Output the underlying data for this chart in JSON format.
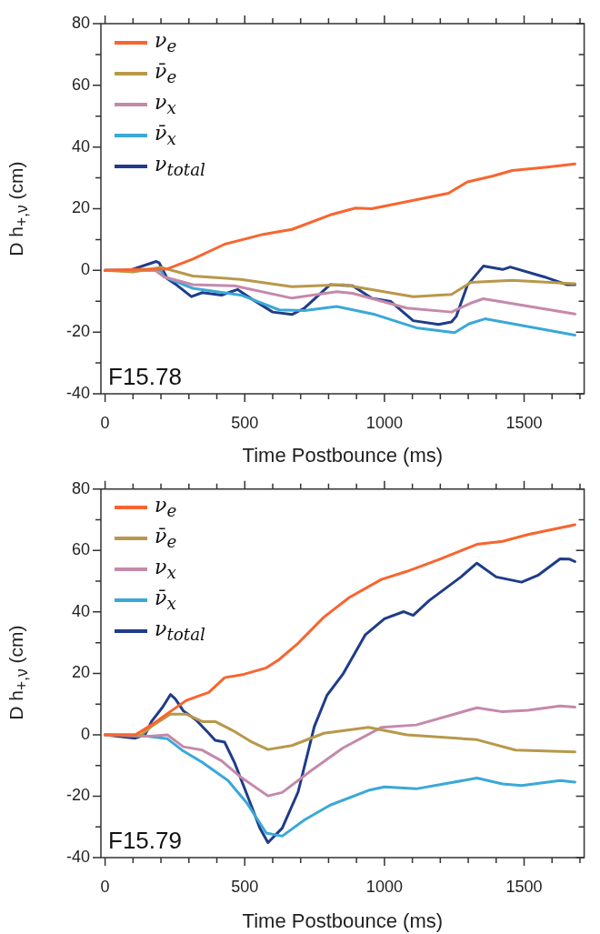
{
  "chart_data": [
    {
      "type": "line",
      "xlabel": "Time Postbounce (ms)",
      "ylabel": "D h$_{+,ν}$ (cm)",
      "annotations": [
        "F15.78"
      ],
      "legend": "top left",
      "grid": false,
      "marker": "none",
      "line_style": "solid",
      "xlim": [
        -15,
        1715
      ],
      "ylim": [
        -40,
        80
      ],
      "xticks": [
        0,
        {
          "value": 100,
          "label": null
        },
        {
          "value": 200,
          "label": null
        },
        {
          "value": 300,
          "label": null
        },
        {
          "value": 400,
          "label": null
        },
        500,
        {
          "value": 600,
          "label": null
        },
        {
          "value": 700,
          "label": null
        },
        {
          "value": 800,
          "label": null
        },
        {
          "value": 900,
          "label": null
        },
        1000,
        {
          "value": 1100,
          "label": null
        },
        {
          "value": 1200,
          "label": null
        },
        {
          "value": 1300,
          "label": null
        },
        {
          "value": 1400,
          "label": null
        },
        1500,
        {
          "value": 1600,
          "label": null
        },
        {
          "value": 1700,
          "label": null
        }
      ],
      "yticks": [
        -40,
        {
          "value": -30,
          "label": null
        },
        -20,
        {
          "value": -10,
          "label": null
        },
        0,
        {
          "value": 10,
          "label": null
        },
        20,
        {
          "value": 30,
          "label": null
        },
        40,
        {
          "value": 50,
          "label": null
        },
        60,
        {
          "value": 70,
          "label": null
        },
        80
      ],
      "series": [
        {
          "name": "ν$_{e}$",
          "color": "#f8652f",
          "x": [
            0,
            108,
            223,
            314,
            428,
            566,
            669,
            806,
            897,
            954,
            1080,
            1229,
            1297,
            1389,
            1457,
            1583,
            1682
          ],
          "values": [
            0,
            0.3,
            0.5,
            3.7,
            8.5,
            11.7,
            13.3,
            18,
            20.2,
            20,
            22.3,
            25,
            28.7,
            30.6,
            32.4,
            33.5,
            34.5
          ]
        },
        {
          "name": "ν̄$_{e}$",
          "color": "#b8984a",
          "x": [
            0,
            100,
            200,
            314,
            486,
            669,
            851,
            1103,
            1240,
            1309,
            1457,
            1682
          ],
          "values": [
            0,
            -0.5,
            1,
            -1.8,
            -2.9,
            -5.3,
            -4.6,
            -8.5,
            -7.8,
            -3.9,
            -3.2,
            -4.3
          ]
        },
        {
          "name": "ν$_{x}$",
          "color": "#c589ab",
          "x": [
            0,
            180,
            211,
            314,
            463,
            669,
            829,
            886,
            1080,
            1240,
            1309,
            1354,
            1682
          ],
          "values": [
            0,
            0,
            -2.1,
            -4.6,
            -5,
            -9,
            -6.9,
            -7.4,
            -12.2,
            -13.5,
            -10.6,
            -9.2,
            -14.1
          ]
        },
        {
          "name": "ν̄$_{x}$",
          "color": "#3aa8d8",
          "x": [
            0,
            200,
            211,
            314,
            486,
            623,
            714,
            829,
            966,
            1114,
            1251,
            1303,
            1360,
            1682
          ],
          "values": [
            0,
            0,
            -2.1,
            -5.8,
            -8,
            -12.8,
            -13,
            -11.7,
            -14.3,
            -18.6,
            -20.2,
            -17.3,
            -15.7,
            -21
          ]
        },
        {
          "name": "ν$_{total}$",
          "color": "#1f3c88",
          "x": [
            0,
            86,
            183,
            194,
            223,
            257,
            309,
            348,
            417,
            474,
            531,
            600,
            669,
            714,
            806,
            886,
            954,
            1023,
            1103,
            1194,
            1240,
            1257,
            1297,
            1354,
            1423,
            1451,
            1572,
            1652,
            1682
          ],
          "values": [
            0,
            0,
            2.9,
            2.4,
            -2.7,
            -4.8,
            -8.5,
            -7.2,
            -8,
            -6.2,
            -9.6,
            -13.5,
            -14.3,
            -12.2,
            -4.6,
            -5,
            -9,
            -10.1,
            -16.3,
            -17.5,
            -16.7,
            -14.9,
            -4.8,
            1.4,
            0.3,
            1.1,
            -2.1,
            -4.6,
            -4.6
          ]
        }
      ]
    },
    {
      "type": "line",
      "xlabel": "Time Postbounce (ms)",
      "ylabel": "D h$_{+,ν}$ (cm)",
      "annotations": [
        "F15.79"
      ],
      "legend": "top left",
      "grid": false,
      "marker": "none",
      "line_style": "solid",
      "xlim": [
        -15,
        1715
      ],
      "ylim": [
        -40,
        80
      ],
      "xticks": [
        0,
        {
          "value": 100,
          "label": null
        },
        {
          "value": 200,
          "label": null
        },
        {
          "value": 300,
          "label": null
        },
        {
          "value": 400,
          "label": null
        },
        500,
        {
          "value": 600,
          "label": null
        },
        {
          "value": 700,
          "label": null
        },
        {
          "value": 800,
          "label": null
        },
        {
          "value": 900,
          "label": null
        },
        1000,
        {
          "value": 1100,
          "label": null
        },
        {
          "value": 1200,
          "label": null
        },
        {
          "value": 1300,
          "label": null
        },
        {
          "value": 1400,
          "label": null
        },
        1500,
        {
          "value": 1600,
          "label": null
        },
        {
          "value": 1700,
          "label": null
        }
      ],
      "yticks": [
        -40,
        {
          "value": -30,
          "label": null
        },
        -20,
        {
          "value": -10,
          "label": null
        },
        0,
        {
          "value": 10,
          "label": null
        },
        20,
        {
          "value": 30,
          "label": null
        },
        40,
        {
          "value": 50,
          "label": null
        },
        60,
        {
          "value": 70,
          "label": null
        },
        80
      ],
      "series": [
        {
          "name": "ν$_{e}$",
          "color": "#f8652f",
          "x": [
            0,
            108,
            166,
            223,
            291,
            371,
            428,
            497,
            577,
            623,
            691,
            783,
            874,
            989,
            1080,
            1194,
            1331,
            1423,
            1514,
            1682
          ],
          "values": [
            0,
            0,
            3.2,
            6.9,
            11.2,
            13.8,
            18.6,
            19.7,
            21.8,
            24.5,
            29.8,
            38.3,
            44.7,
            50.6,
            53.2,
            57,
            62,
            63,
            65.2,
            68.4
          ]
        },
        {
          "name": "ν̄$_{e}$",
          "color": "#b8984a",
          "x": [
            0,
            130,
            166,
            234,
            291,
            348,
            394,
            463,
            520,
            583,
            669,
            783,
            943,
            1080,
            1331,
            1469,
            1682
          ],
          "values": [
            0,
            0,
            2.7,
            6.7,
            6.7,
            4.3,
            4.3,
            1.1,
            -2.1,
            -4.8,
            -3.5,
            0.5,
            2.4,
            0,
            -1.6,
            -5,
            -5.6
          ]
        },
        {
          "name": "ν$_{x}$",
          "color": "#c589ab",
          "x": [
            0,
            150,
            223,
            280,
            348,
            417,
            486,
            583,
            634,
            737,
            851,
            989,
            1114,
            1331,
            1423,
            1514,
            1629,
            1682
          ],
          "values": [
            0,
            -0.5,
            0,
            -3.9,
            -5,
            -8.5,
            -13.8,
            -19.9,
            -18.8,
            -11.7,
            -4.3,
            2.4,
            3.2,
            8.8,
            7.5,
            8,
            9.4,
            9
          ]
        },
        {
          "name": "ν̄$_{x}$",
          "color": "#3aa8d8",
          "x": [
            0,
            150,
            223,
            280,
            348,
            440,
            509,
            577,
            634,
            714,
            806,
            943,
            1000,
            1114,
            1331,
            1423,
            1491,
            1629,
            1682
          ],
          "values": [
            0,
            -0.5,
            -1.3,
            -5.3,
            -9,
            -14.9,
            -22.4,
            -32,
            -33,
            -27.7,
            -22.9,
            -18.1,
            -17,
            -17.6,
            -14.1,
            -16,
            -16.5,
            -14.9,
            -15.4
          ]
        },
        {
          "name": "ν$_{total}$",
          "color": "#1f3c88",
          "x": [
            0,
            108,
            143,
            166,
            206,
            234,
            251,
            280,
            326,
            371,
            394,
            428,
            463,
            509,
            554,
            583,
            634,
            691,
            749,
            794,
            851,
            931,
            1000,
            1069,
            1103,
            1160,
            1274,
            1331,
            1400,
            1491,
            1549,
            1629,
            1663,
            1682
          ],
          "values": [
            0,
            -1.1,
            0,
            4.3,
            9,
            13.1,
            11.7,
            7.8,
            4.8,
            0.5,
            -1.8,
            -2.4,
            -9,
            -19.7,
            -30.4,
            -35.1,
            -30.4,
            -18.6,
            2.7,
            12.8,
            19.7,
            32.5,
            37.8,
            40.1,
            38.9,
            43.7,
            51.4,
            55.9,
            51.4,
            49.7,
            51.9,
            57.3,
            57.2,
            56.4
          ]
        }
      ]
    }
  ]
}
